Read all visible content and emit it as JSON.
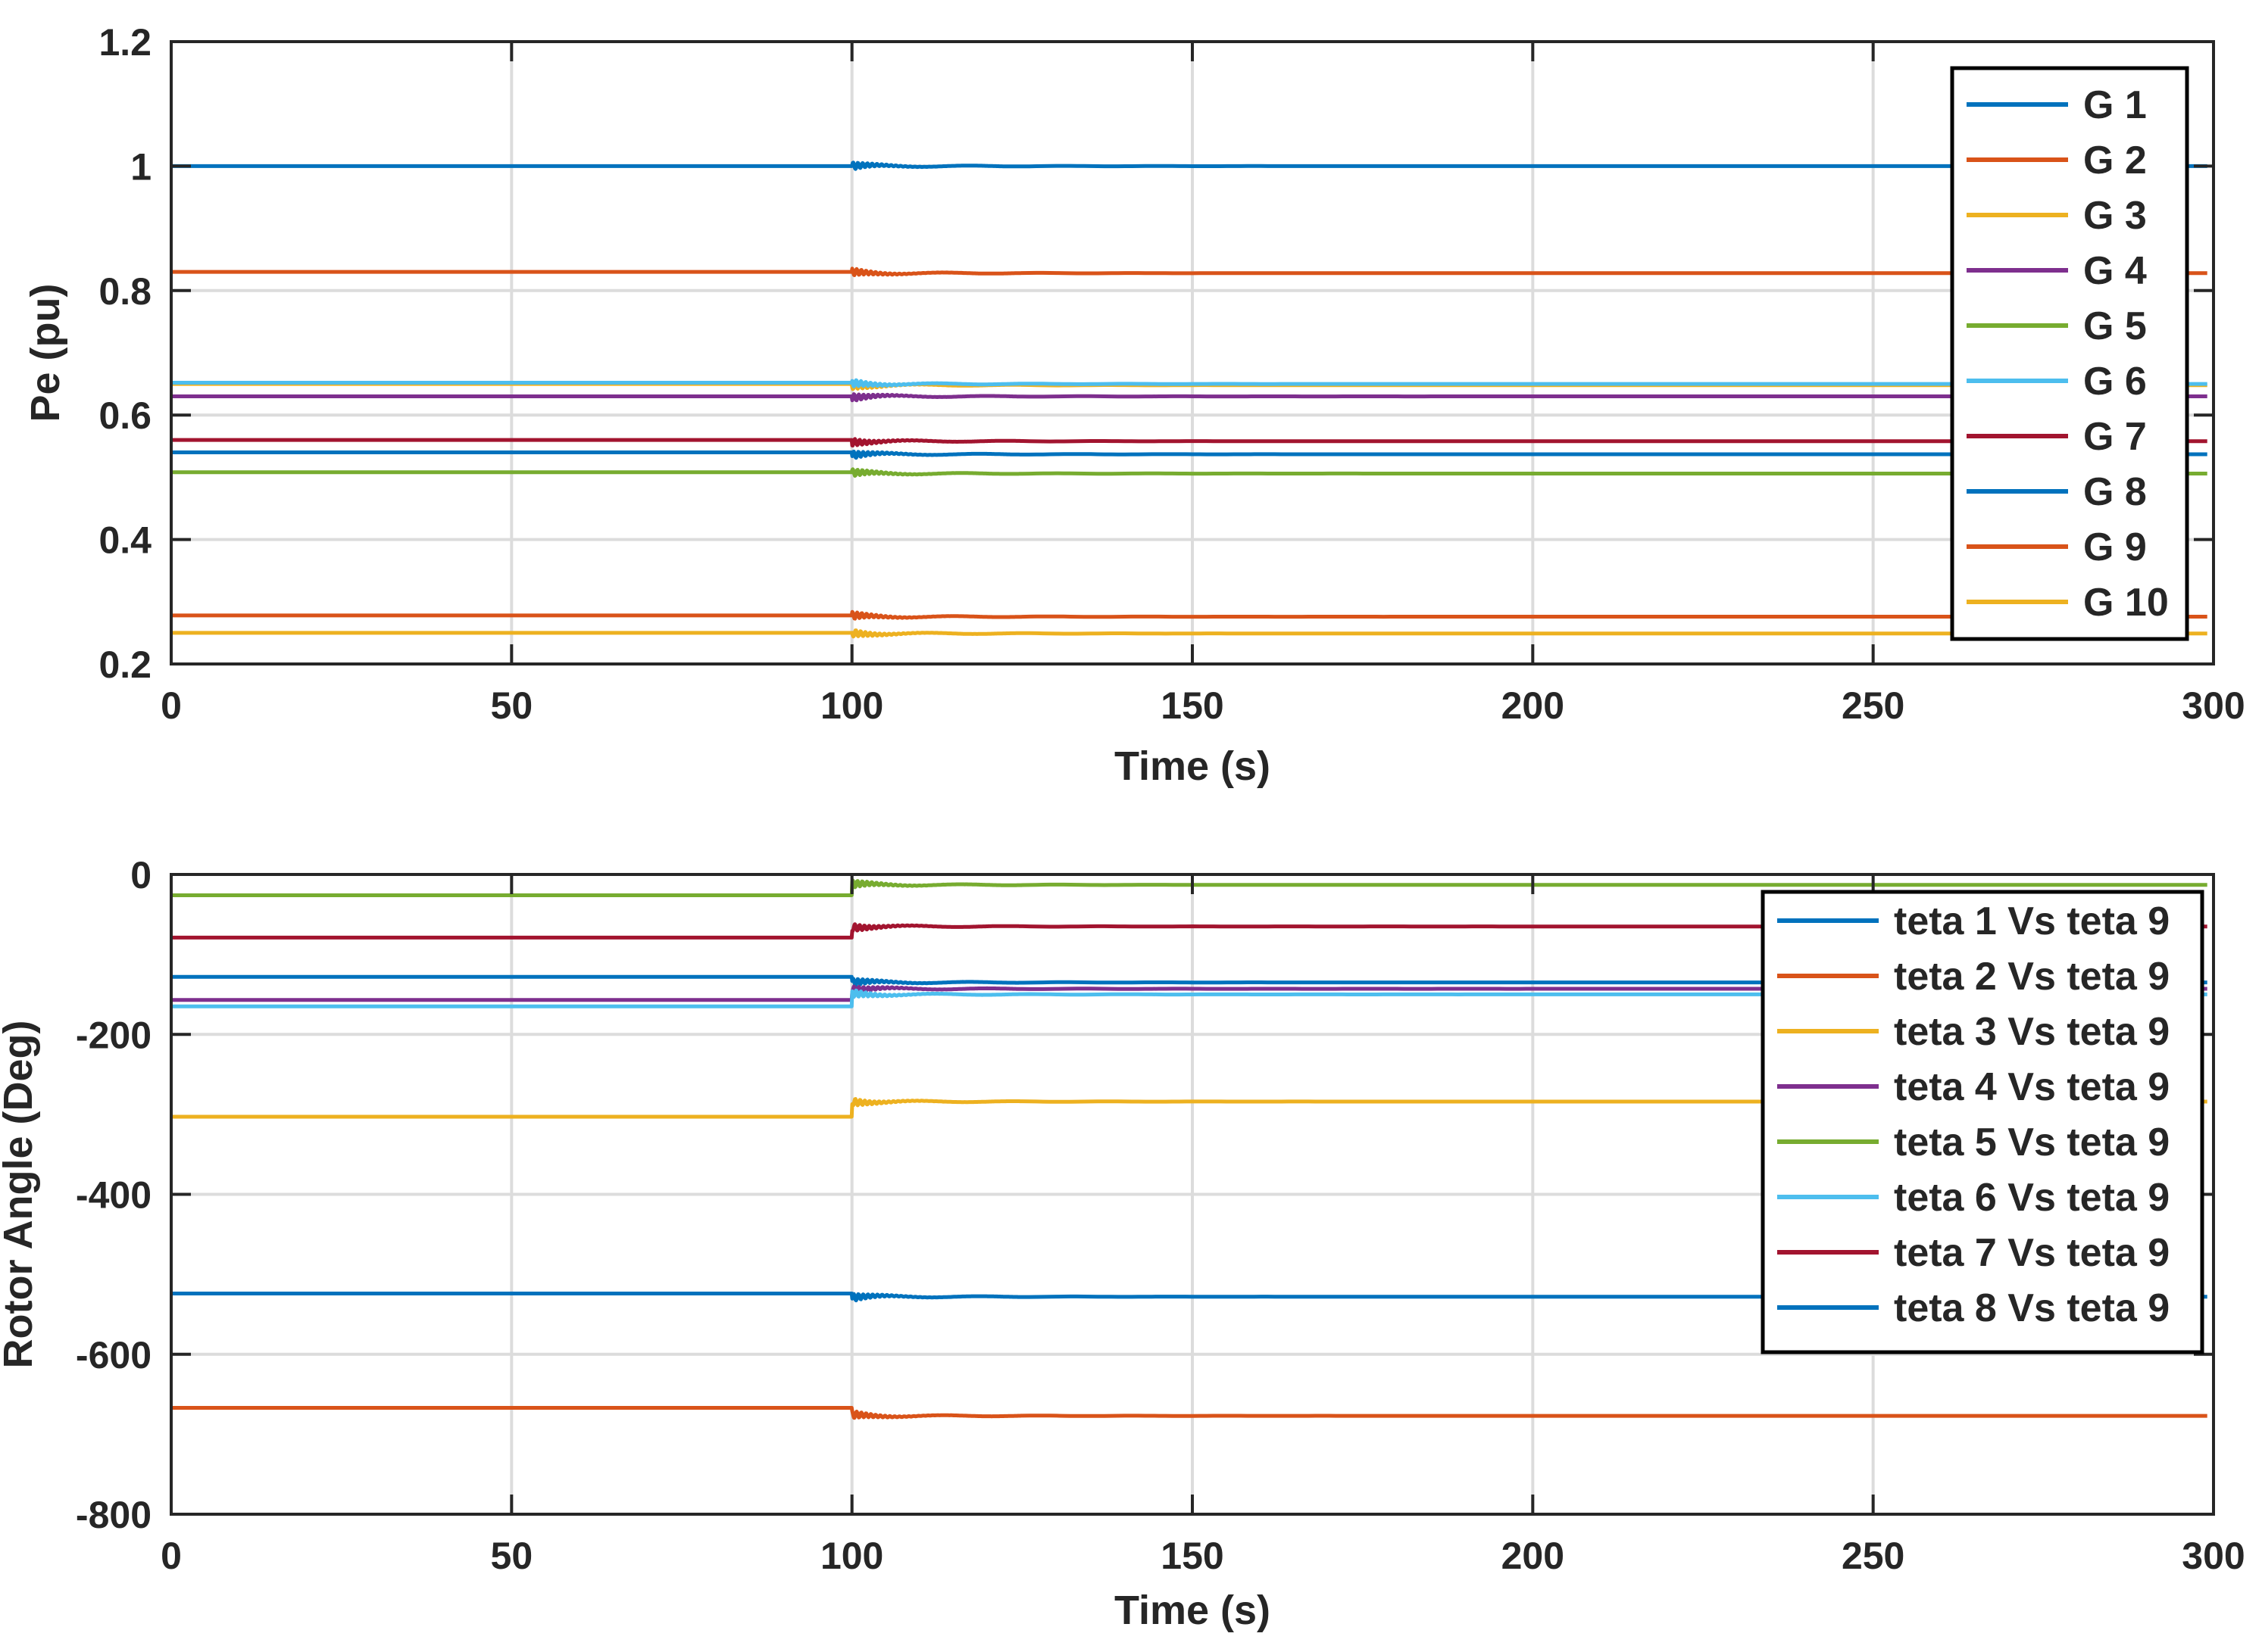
{
  "colors": {
    "c1": "#0072BD",
    "c2": "#D95319",
    "c3": "#EDB120",
    "c4": "#7E2F8E",
    "c5": "#77AC30",
    "c6": "#4DBEEE",
    "c7": "#A2142F"
  },
  "chart_data": [
    {
      "type": "line",
      "xlabel": "Time (s)",
      "ylabel": "Pe (pu)",
      "xlim": [
        0,
        300
      ],
      "ylim": [
        0.2,
        1.2
      ],
      "xticks": [
        "0",
        "50",
        "100",
        "150",
        "200",
        "250",
        "300"
      ],
      "yticks": [
        "0.2",
        "0.4",
        "0.6",
        "0.8",
        "1",
        "1.2"
      ],
      "grid": true,
      "legend_position": "top-right",
      "event_time": 100,
      "series": [
        {
          "name": "G 1",
          "color": "#0072BD",
          "before": 1.0,
          "after": 1.0
        },
        {
          "name": "G 2",
          "color": "#D95319",
          "before": 0.83,
          "after": 0.828
        },
        {
          "name": "G 3",
          "color": "#EDB120",
          "before": 0.65,
          "after": 0.648
        },
        {
          "name": "G 4",
          "color": "#7E2F8E",
          "before": 0.63,
          "after": 0.63
        },
        {
          "name": "G 5",
          "color": "#77AC30",
          "before": 0.508,
          "after": 0.506
        },
        {
          "name": "G 6",
          "color": "#4DBEEE",
          "before": 0.652,
          "after": 0.65
        },
        {
          "name": "G 7",
          "color": "#A2142F",
          "before": 0.56,
          "after": 0.558
        },
        {
          "name": "G 8",
          "color": "#0072BD",
          "before": 0.54,
          "after": 0.537
        },
        {
          "name": "G 9",
          "color": "#D95319",
          "before": 0.278,
          "after": 0.276
        },
        {
          "name": "G 10",
          "color": "#EDB120",
          "before": 0.25,
          "after": 0.249
        }
      ]
    },
    {
      "type": "line",
      "xlabel": "Time (s)",
      "ylabel": "Rotor Angle (Deg)",
      "xlim": [
        0,
        300
      ],
      "ylim": [
        -800,
        0
      ],
      "xticks": [
        "0",
        "50",
        "100",
        "150",
        "200",
        "250",
        "300"
      ],
      "yticks": [
        "-800",
        "-600",
        "-400",
        "-200",
        "0"
      ],
      "grid": true,
      "legend_position": "top-right",
      "event_time": 100,
      "series": [
        {
          "name": "teta 1 Vs teta 9",
          "color": "#0072BD",
          "before": -128,
          "after": -135
        },
        {
          "name": "teta 2 Vs teta 9",
          "color": "#D95319",
          "before": -667,
          "after": -677
        },
        {
          "name": "teta 3 Vs teta 9",
          "color": "#EDB120",
          "before": -303,
          "after": -284
        },
        {
          "name": "teta 4 Vs teta 9",
          "color": "#7E2F8E",
          "before": -157,
          "after": -143
        },
        {
          "name": "teta 5 Vs teta 9",
          "color": "#77AC30",
          "before": -26,
          "after": -13
        },
        {
          "name": "teta 6 Vs teta 9",
          "color": "#4DBEEE",
          "before": -165,
          "after": -150
        },
        {
          "name": "teta 7 Vs teta 9",
          "color": "#A2142F",
          "before": -79,
          "after": -65
        },
        {
          "name": "teta 8 Vs teta 9",
          "color": "#0072BD",
          "before": -524,
          "after": -528
        }
      ]
    }
  ]
}
